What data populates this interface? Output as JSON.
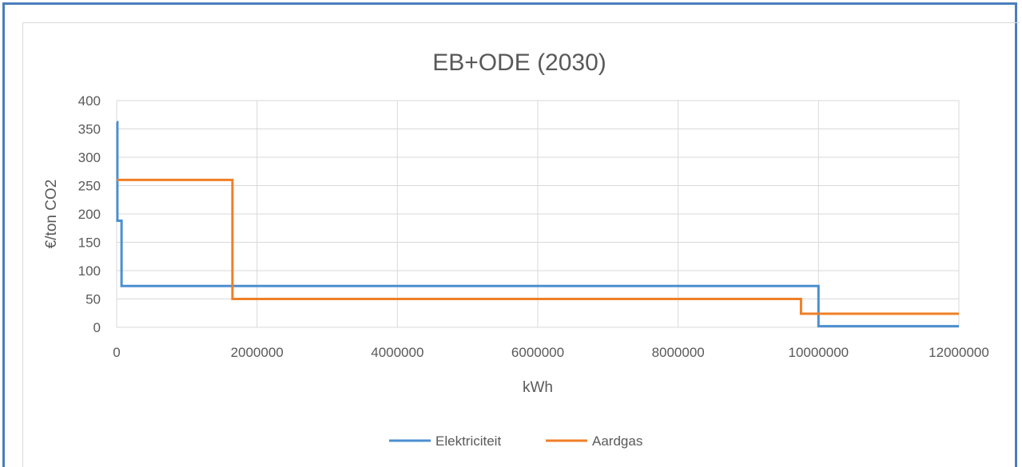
{
  "chart_data": {
    "type": "line",
    "title": "EB+ODE (2030)",
    "xlabel": "kWh",
    "ylabel": "€/ton CO2",
    "xlim": [
      0,
      12000000
    ],
    "ylim": [
      0,
      400
    ],
    "x_ticks": [
      0,
      2000000,
      4000000,
      6000000,
      8000000,
      10000000,
      12000000
    ],
    "y_ticks": [
      0,
      50,
      100,
      150,
      200,
      250,
      300,
      350,
      400
    ],
    "x_tick_labels": [
      "0",
      "2000000",
      "4000000",
      "6000000",
      "8000000",
      "10000000",
      "12000000"
    ],
    "y_tick_labels": [
      "0",
      "50",
      "100",
      "150",
      "200",
      "250",
      "300",
      "350",
      "400"
    ],
    "grid": "vertical and horizontal",
    "legend_position": "bottom",
    "step": true,
    "series": [
      {
        "name": "Elektriciteit",
        "color": "#4b8fd0",
        "x": [
          0,
          10000,
          10000,
          70000,
          70000,
          10000000,
          10000000,
          12000000
        ],
        "y": [
          362,
          362,
          188,
          188,
          73,
          73,
          2,
          2
        ]
      },
      {
        "name": "Aardgas",
        "color": "#f07f26",
        "x": [
          0,
          1650000,
          1650000,
          9750000,
          9750000,
          12000000
        ],
        "y": [
          260,
          260,
          50,
          50,
          24,
          24
        ]
      }
    ]
  }
}
